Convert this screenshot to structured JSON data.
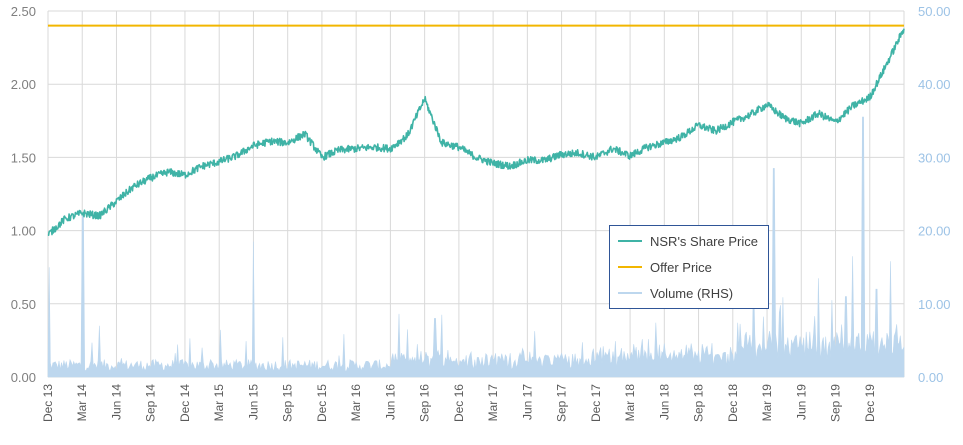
{
  "chart_data": {
    "type": "line",
    "title": "",
    "xlabel": "",
    "ylabel": "",
    "y_left_lim": [
      0,
      2.5
    ],
    "y_right_lim": [
      0,
      50
    ],
    "y_left_ticks": [
      "0.00",
      "0.50",
      "1.00",
      "1.50",
      "2.00",
      "2.50"
    ],
    "y_right_ticks": [
      "0.00",
      "10.00",
      "20.00",
      "30.00",
      "40.00",
      "50.00"
    ],
    "x_tick_labels": [
      "Dec 13",
      "Mar 14",
      "Jun 14",
      "Sep 14",
      "Dec 14",
      "Mar 15",
      "Jun 15",
      "Sep 15",
      "Dec 15",
      "Mar 16",
      "Jun 16",
      "Sep 16",
      "Dec 16",
      "Mar 17",
      "Jun 17",
      "Sep 17",
      "Dec 17",
      "Mar 18",
      "Jun 18",
      "Sep 18",
      "Dec 18",
      "Mar 19",
      "Jun 19",
      "Sep 19",
      "Dec 19"
    ],
    "grid": true,
    "legend_position": "center-right",
    "colors": {
      "share_price": "#3fb3a6",
      "offer_price": "#f2b600",
      "volume": "#bdd7ee"
    },
    "series": [
      {
        "name": "NSR's Share Price",
        "axis": "left",
        "x": [
          0,
          0.5,
          1,
          1.5,
          2,
          2.5,
          3,
          3.5,
          4,
          4.5,
          5,
          5.5,
          6,
          6.5,
          7,
          7.5,
          8,
          8.5,
          9,
          9.5,
          10,
          10.5,
          11,
          11.5,
          12,
          12.5,
          13,
          13.5,
          14,
          14.5,
          15,
          15.5,
          16,
          16.5,
          17,
          17.5,
          18,
          18.5,
          19,
          19.5,
          20,
          20.5,
          21,
          21.5,
          22,
          22.5,
          23,
          23.5,
          24,
          24.5,
          25
        ],
        "values": [
          0.97,
          1.08,
          1.12,
          1.1,
          1.2,
          1.3,
          1.36,
          1.4,
          1.38,
          1.44,
          1.47,
          1.51,
          1.58,
          1.61,
          1.6,
          1.66,
          1.5,
          1.55,
          1.56,
          1.57,
          1.56,
          1.65,
          1.9,
          1.6,
          1.57,
          1.5,
          1.46,
          1.44,
          1.48,
          1.48,
          1.52,
          1.53,
          1.5,
          1.56,
          1.51,
          1.57,
          1.6,
          1.64,
          1.72,
          1.68,
          1.74,
          1.79,
          1.86,
          1.77,
          1.73,
          1.8,
          1.74,
          1.85,
          1.91,
          2.14,
          2.38
        ]
      },
      {
        "name": "Offer Price",
        "axis": "left",
        "x": [
          0,
          25
        ],
        "values": [
          2.4,
          2.4
        ]
      },
      {
        "name": "Volume (RHS)",
        "axis": "right",
        "type": "area",
        "base": 0.8,
        "spikes": [
          [
            0.03,
            15
          ],
          [
            1.02,
            22
          ],
          [
            1.5,
            7
          ],
          [
            4.5,
            4
          ],
          [
            6.0,
            18.5
          ],
          [
            10.5,
            6.5
          ],
          [
            10.8,
            4.5
          ],
          [
            11.3,
            8.0
          ],
          [
            11.5,
            8.5
          ],
          [
            20.6,
            14.0
          ],
          [
            21.2,
            28.5
          ],
          [
            22.5,
            13.5
          ],
          [
            22.9,
            10.5
          ],
          [
            23.3,
            11.0
          ],
          [
            23.5,
            16.5
          ],
          [
            23.8,
            35.5
          ],
          [
            24.2,
            12.0
          ],
          [
            24.6,
            15.8
          ],
          [
            24.8,
            7.2
          ]
        ]
      }
    ]
  },
  "legend": {
    "items": [
      {
        "label": "NSR's Share Price"
      },
      {
        "label": "Offer Price"
      },
      {
        "label": "Volume (RHS)"
      }
    ]
  }
}
